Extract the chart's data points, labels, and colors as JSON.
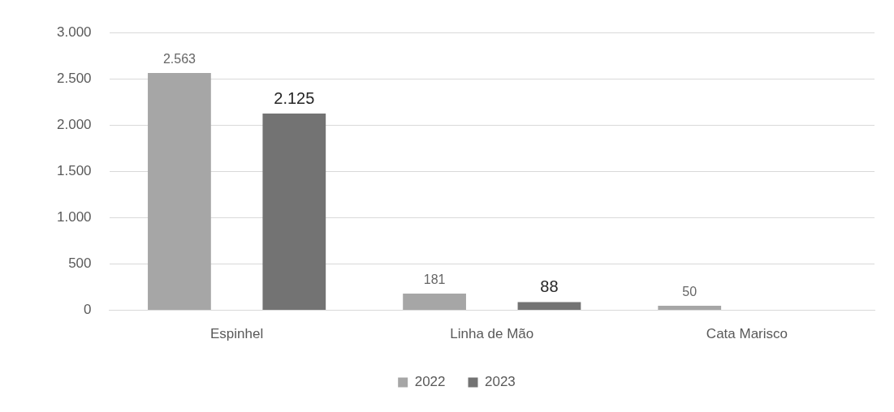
{
  "chart_data": {
    "type": "bar",
    "categories": [
      "Espinhel",
      "Linha de Mão",
      "Cata Marisco"
    ],
    "series": [
      {
        "name": "2022",
        "color": "#a6a6a6",
        "values": [
          2563,
          181,
          50
        ],
        "value_labels": [
          "2.563",
          "181",
          "50"
        ]
      },
      {
        "name": "2023",
        "color": "#737373",
        "values": [
          2125,
          88,
          null
        ],
        "value_labels": [
          "2.125",
          "88",
          null
        ]
      }
    ],
    "ylim": [
      0,
      3000
    ],
    "yticks": [
      {
        "value": 0,
        "label": "0"
      },
      {
        "value": 500,
        "label": "500"
      },
      {
        "value": 1000,
        "label": "1.000"
      },
      {
        "value": 1500,
        "label": "1.500"
      },
      {
        "value": 2000,
        "label": "2.000"
      },
      {
        "value": 2500,
        "label": "2.500"
      },
      {
        "value": 3000,
        "label": "3.000"
      }
    ],
    "grid": "y",
    "legend": "bottom"
  }
}
